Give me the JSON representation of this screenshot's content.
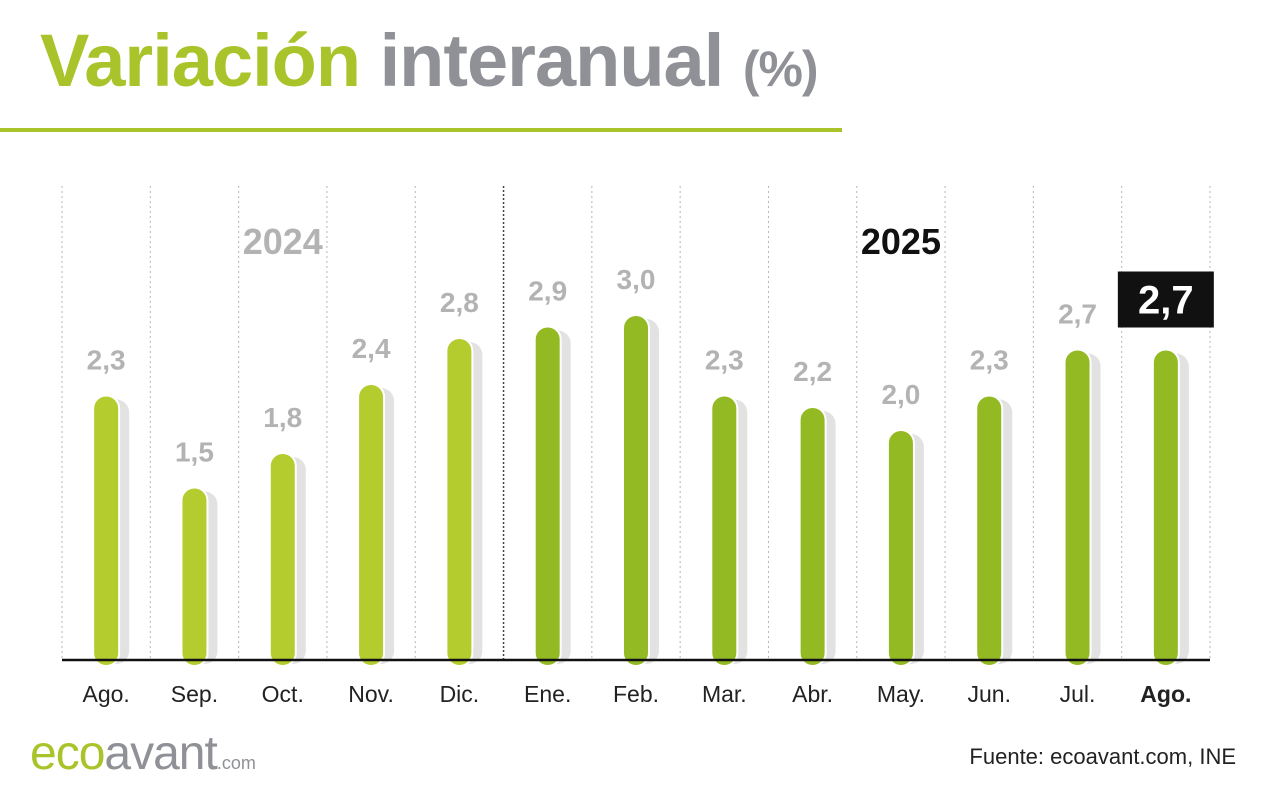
{
  "header": {
    "title_part1": "Variación",
    "title_part2": "interanual",
    "title_part3": "(%)"
  },
  "footer": {
    "source": "Fuente: ecoavant.com, INE",
    "logo_part1": "eco",
    "logo_part2": "avant",
    "logo_part3": ".com"
  },
  "colors": {
    "accent_light": "#b5cc2e",
    "accent_dark": "#93ba22",
    "shadow": "#e2e2e2",
    "label_gray": "#b3b3b3",
    "highlight_bg": "#111111",
    "highlight_text": "#ffffff"
  },
  "chart_data": {
    "type": "bar",
    "title": "Variación interanual (%)",
    "xlabel": "",
    "ylabel": "",
    "ylim": [
      0,
      3.2
    ],
    "grid": "vertical dotted separators",
    "categories": [
      "Ago.",
      "Sep.",
      "Oct.",
      "Nov.",
      "Dic.",
      "Ene.",
      "Feb.",
      "Mar.",
      "Abr.",
      "May.",
      "Jun.",
      "Jul.",
      "Ago."
    ],
    "values": [
      2.3,
      1.5,
      1.8,
      2.4,
      2.8,
      2.9,
      3.0,
      2.3,
      2.2,
      2.0,
      2.3,
      2.7,
      2.7
    ],
    "value_labels": [
      "2,3",
      "1,5",
      "1,8",
      "2,4",
      "2,8",
      "2,9",
      "3,0",
      "2,3",
      "2,2",
      "2,0",
      "2,3",
      "2,7",
      "2,7"
    ],
    "year_groups": [
      {
        "label": "2024",
        "start": 0,
        "end": 4
      },
      {
        "label": "2025",
        "start": 5,
        "end": 12
      }
    ],
    "highlight_index": 12
  }
}
